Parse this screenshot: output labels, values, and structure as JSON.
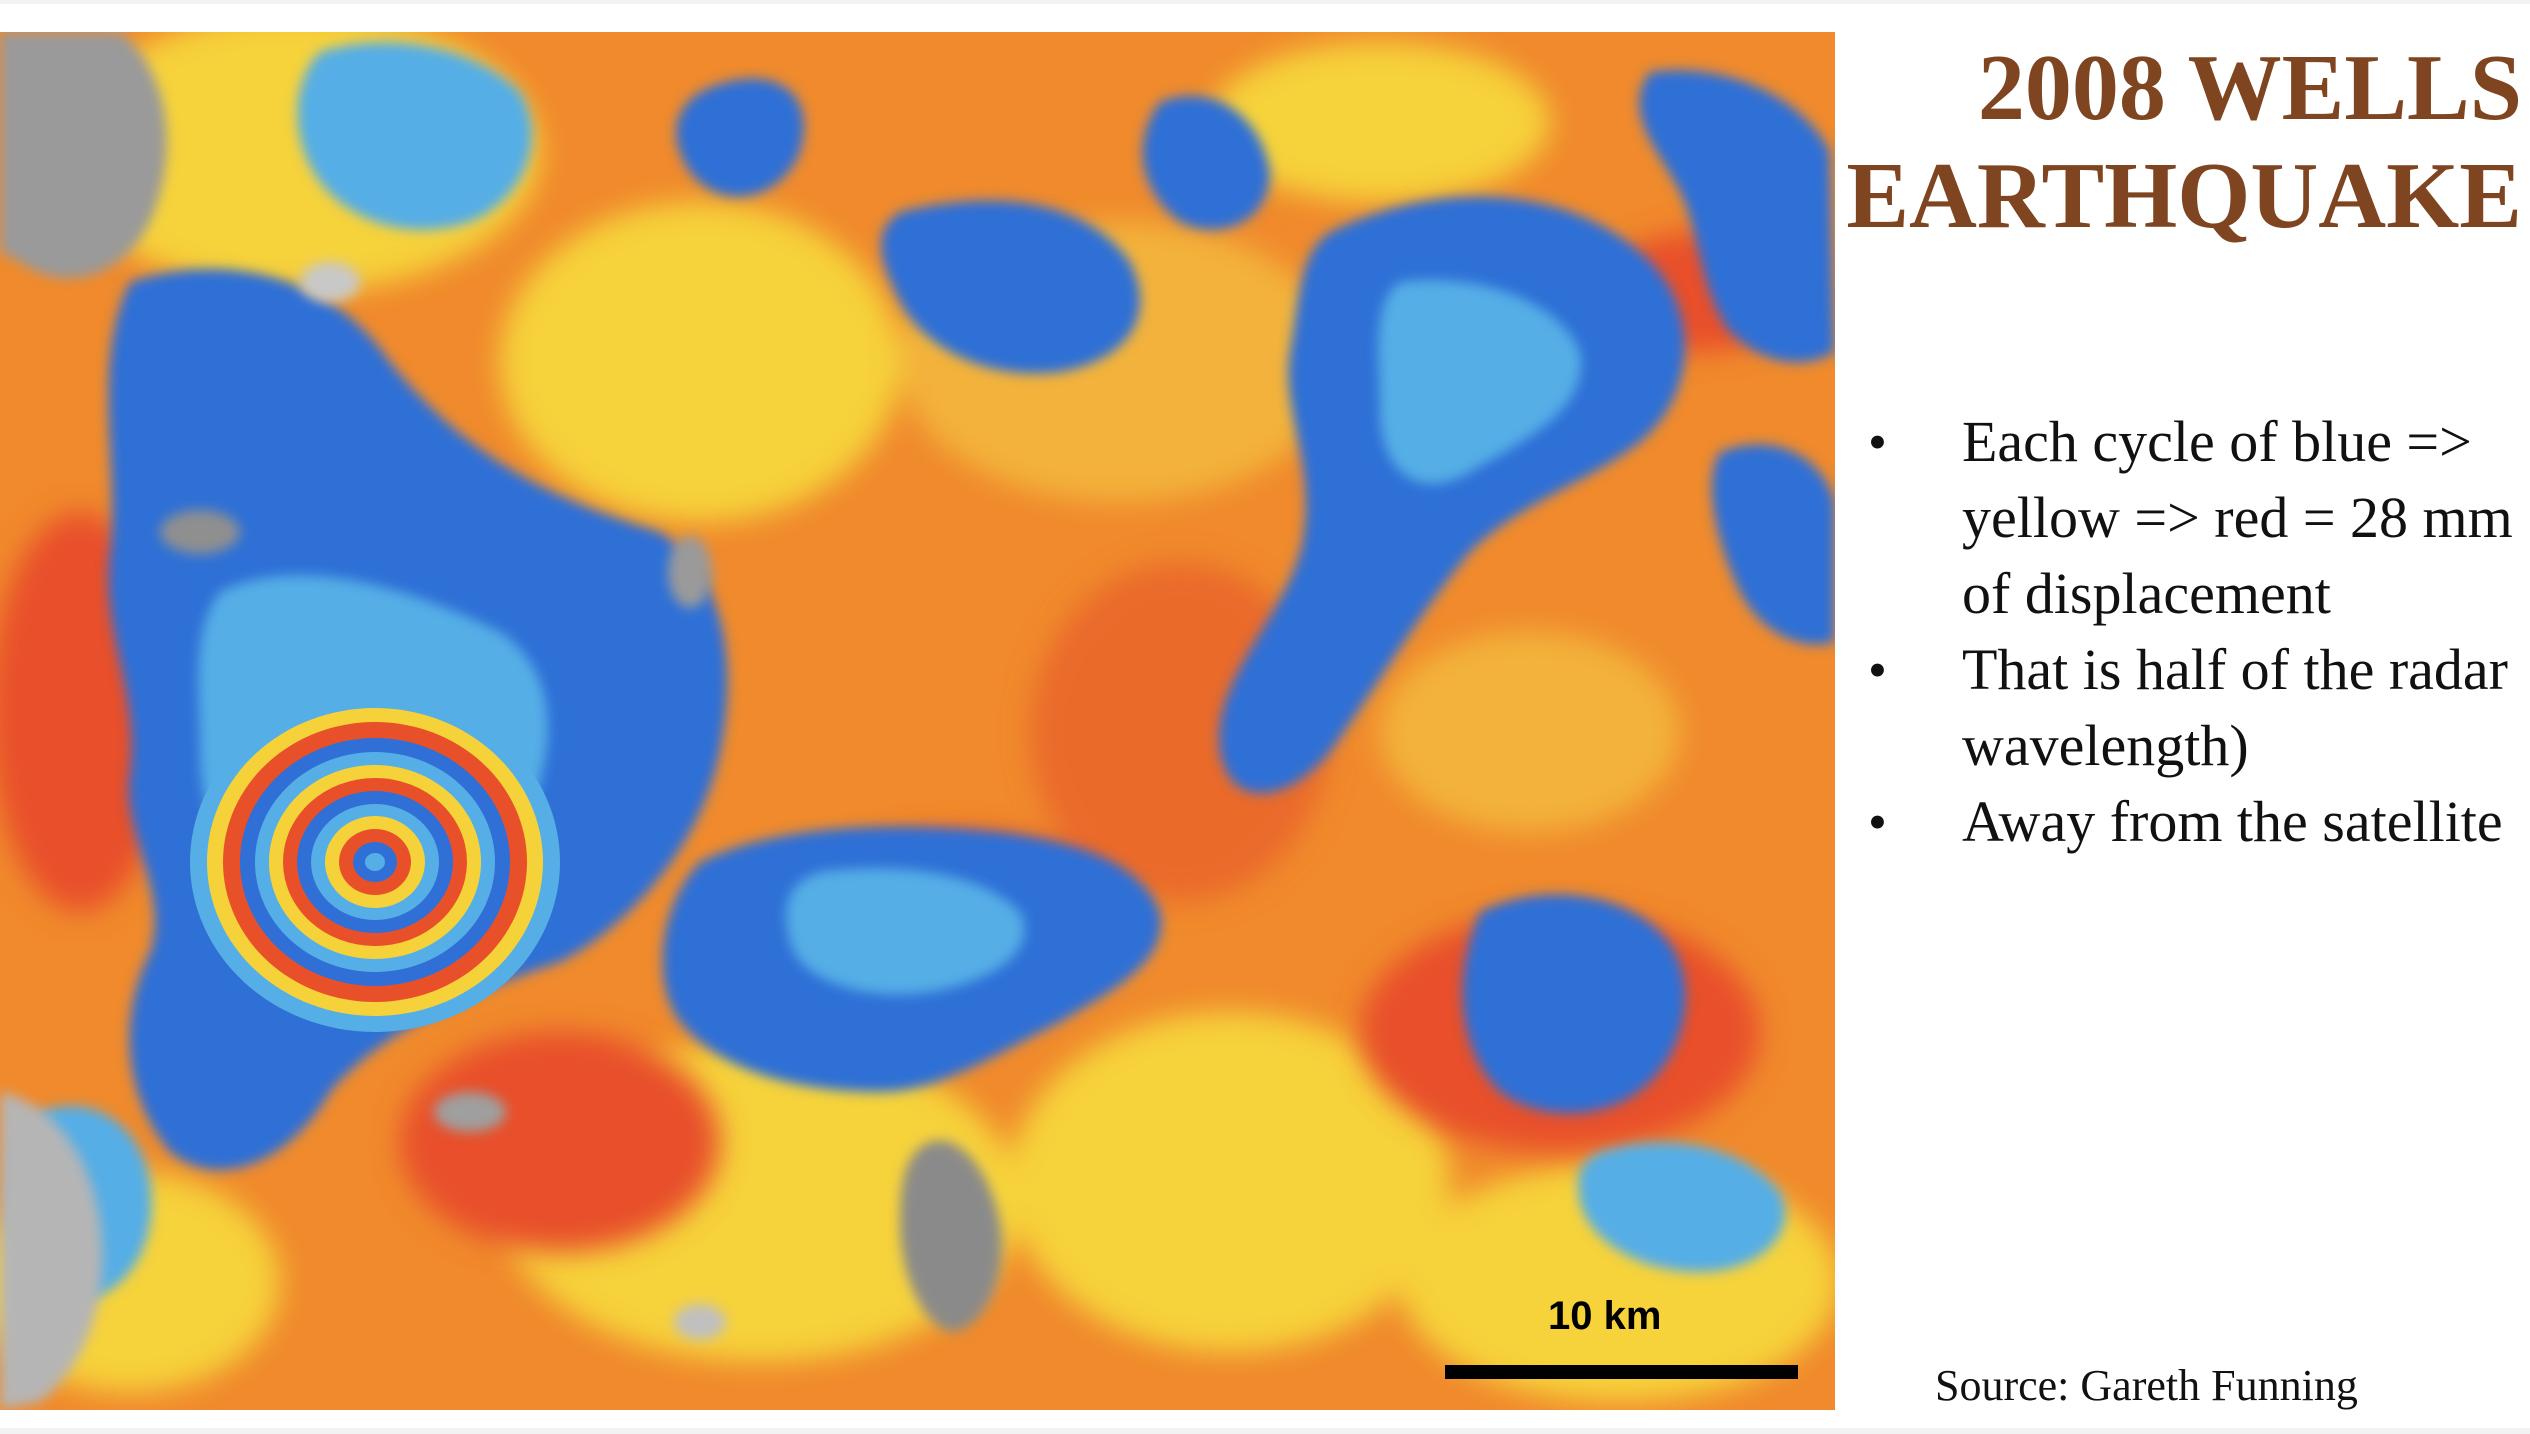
{
  "slide": {
    "title_line1": "2008 WELLS",
    "title_line2": "EARTHQUAKE",
    "bullets": [
      "Each cycle of blue => yellow => red = 28 mm of displacement",
      "That is half of the radar wavelength)",
      "Away from the satellite"
    ],
    "bullet_symbol": "•",
    "source": "Source: Gareth Funning",
    "scale_label": "10 km"
  },
  "colors": {
    "title": "#7f4520",
    "fringe_blue": "#2f6fd6",
    "fringe_cyan": "#55aee6",
    "fringe_yellow": "#f6d23a",
    "fringe_orange": "#f08a2c",
    "fringe_red": "#e8502a",
    "terrain_gray": "#9a9a9a"
  }
}
